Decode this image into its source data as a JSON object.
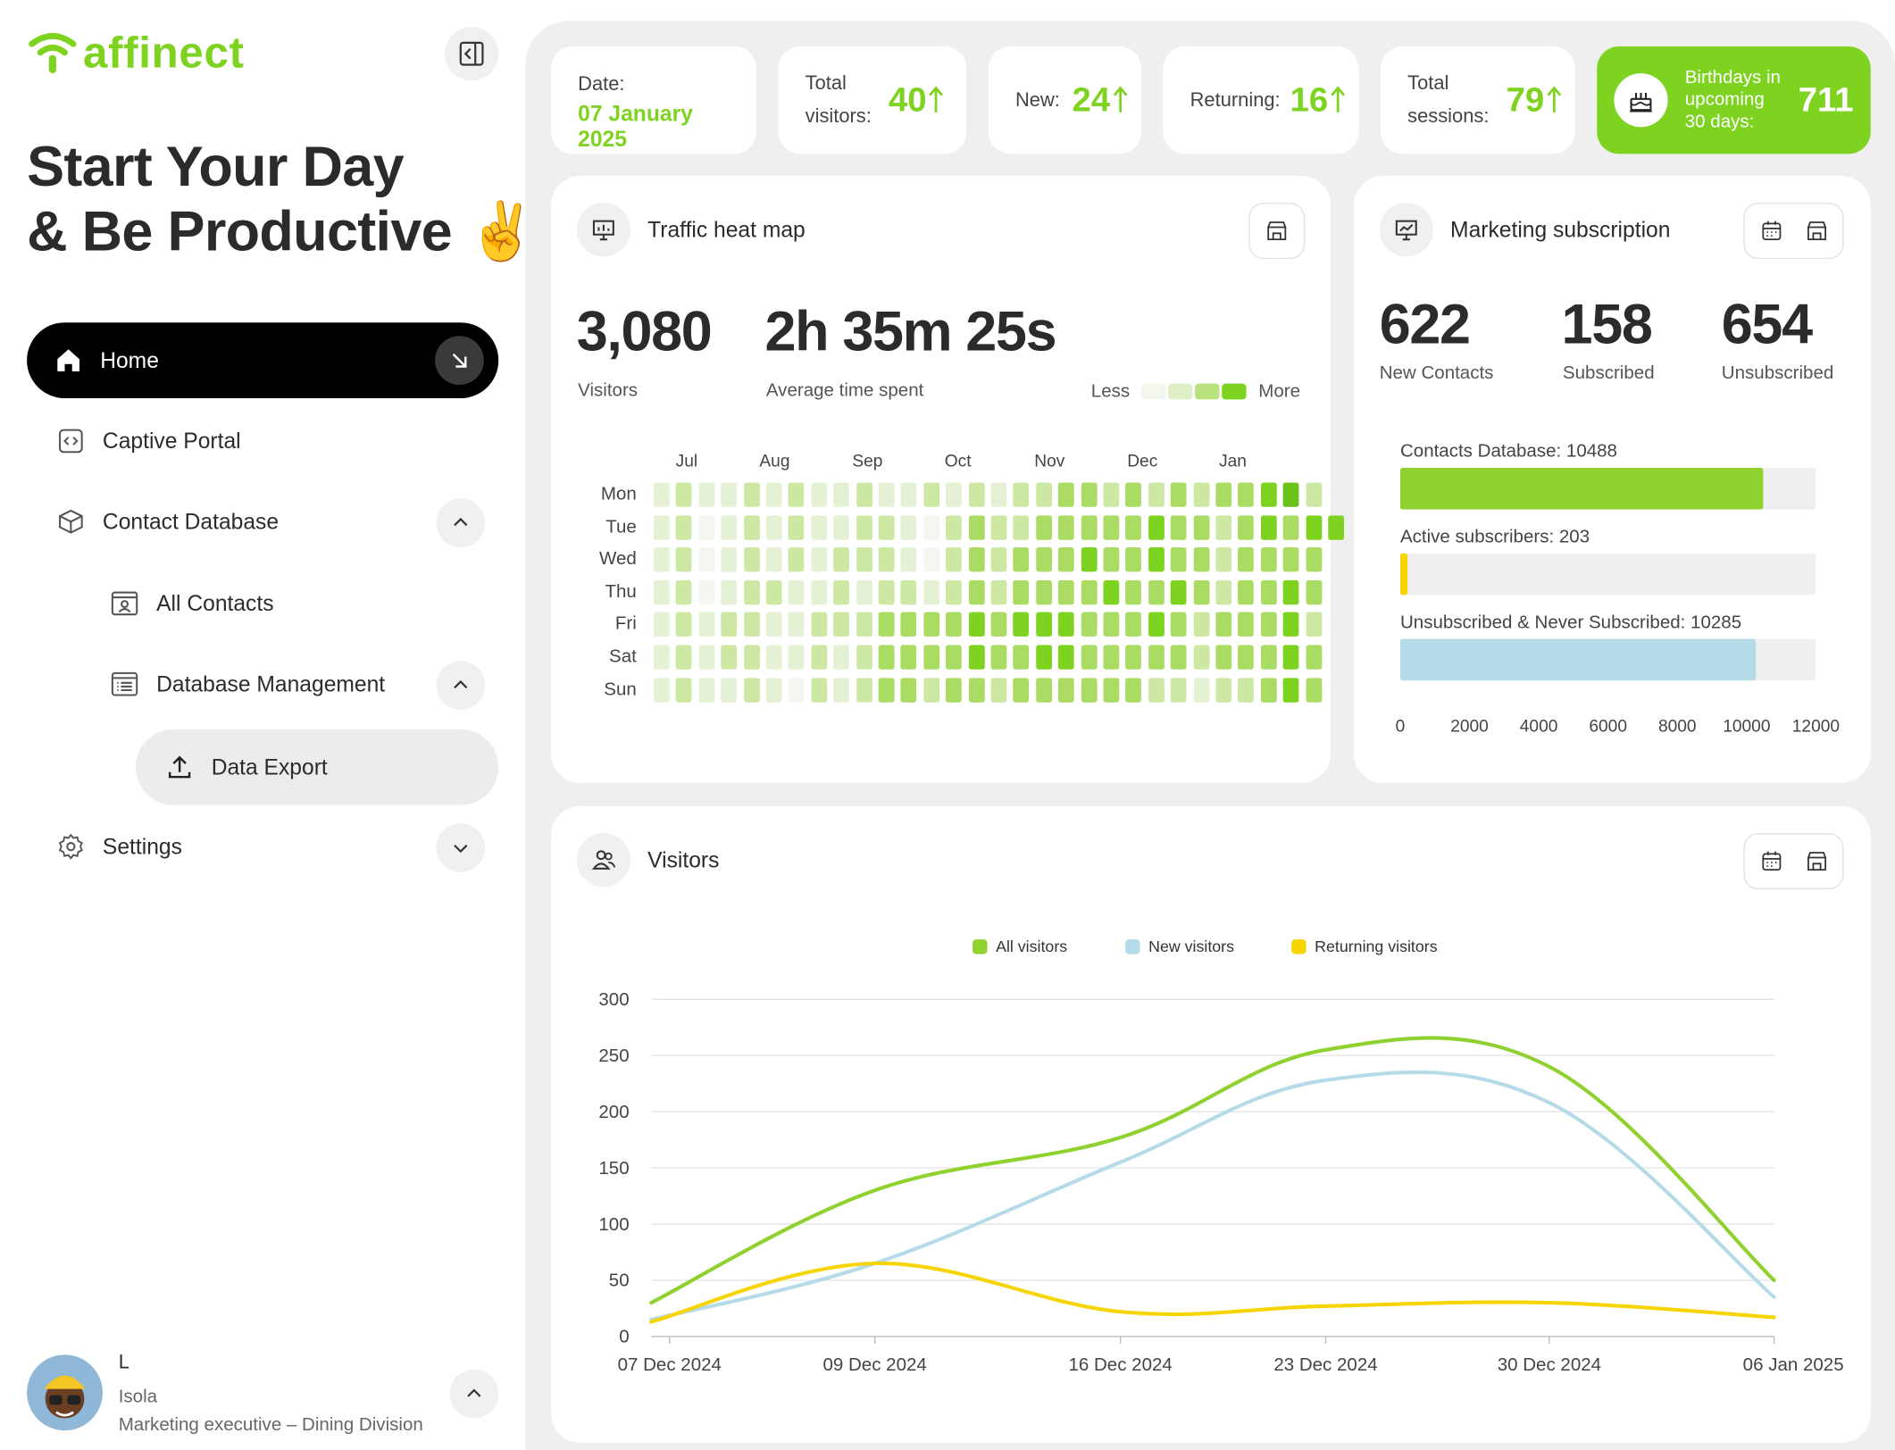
{
  "sidebar": {
    "brand": "affinect",
    "headline_line1": "Start Your Day",
    "headline_line2": "& Be Productive",
    "headline_emoji": "✌️",
    "nav": {
      "home": "Home",
      "captive_portal": "Captive Portal",
      "contact_database": "Contact Database",
      "all_contacts": "All Contacts",
      "database_management": "Database Management",
      "data_export": "Data Export",
      "settings": "Settings"
    },
    "user": {
      "name": "L",
      "location": "Isola",
      "role": "Marketing executive – Dining Division"
    }
  },
  "kpis": {
    "date_label": "Date:",
    "date_value": "07 January 2025",
    "total_visitors_label_1": "Total",
    "total_visitors_label_2": "visitors:",
    "total_visitors_value": "40",
    "new_label": "New:",
    "new_value": "24",
    "returning_label": "Returning:",
    "returning_value": "16",
    "total_sessions_label_1": "Total",
    "total_sessions_label_2": "sessions:",
    "total_sessions_value": "79",
    "birthdays_label_1": "Birthdays in",
    "birthdays_label_2": "upcoming",
    "birthdays_label_3": "30 days:",
    "birthdays_value": "711"
  },
  "heatmap_card": {
    "title": "Traffic heat map",
    "visitors_value": "3,080",
    "visitors_label": "Visitors",
    "time_value": "2h 35m 25s",
    "time_label": "Average time spent",
    "legend_less": "Less",
    "legend_more": "More",
    "months": [
      "Jul",
      "Aug",
      "Sep",
      "Oct",
      "Nov",
      "Dec",
      "Jan"
    ],
    "days": [
      "Mon",
      "Tue",
      "Wed",
      "Thu",
      "Fri",
      "Sat",
      "Sun"
    ],
    "levels": [
      [
        1,
        2,
        1,
        1,
        2,
        1,
        2,
        1,
        1,
        2,
        1,
        1,
        2,
        1,
        2,
        1,
        2,
        2,
        3,
        3,
        2,
        3,
        2,
        3,
        2,
        3,
        3,
        4,
        5,
        2
      ],
      [
        1,
        2,
        0,
        1,
        2,
        1,
        2,
        1,
        1,
        2,
        2,
        1,
        0,
        2,
        3,
        2,
        2,
        3,
        3,
        3,
        3,
        3,
        4,
        3,
        3,
        2,
        3,
        4,
        3,
        4,
        4
      ],
      [
        1,
        2,
        0,
        1,
        2,
        1,
        2,
        1,
        2,
        2,
        2,
        1,
        0,
        2,
        3,
        2,
        3,
        3,
        3,
        4,
        3,
        3,
        4,
        3,
        3,
        2,
        3,
        3,
        3,
        3
      ],
      [
        1,
        2,
        0,
        1,
        2,
        2,
        1,
        1,
        2,
        1,
        2,
        2,
        1,
        2,
        3,
        2,
        3,
        3,
        3,
        3,
        4,
        3,
        3,
        4,
        3,
        2,
        3,
        3,
        4,
        3
      ],
      [
        1,
        2,
        1,
        2,
        2,
        1,
        1,
        2,
        2,
        2,
        3,
        3,
        3,
        3,
        4,
        3,
        4,
        4,
        4,
        3,
        3,
        3,
        4,
        3,
        2,
        3,
        3,
        3,
        4,
        2
      ],
      [
        1,
        2,
        1,
        2,
        2,
        1,
        1,
        2,
        1,
        2,
        3,
        3,
        3,
        3,
        4,
        3,
        3,
        4,
        4,
        3,
        3,
        3,
        3,
        3,
        2,
        3,
        3,
        3,
        4,
        3
      ],
      [
        1,
        2,
        1,
        1,
        2,
        1,
        0,
        2,
        1,
        2,
        3,
        3,
        2,
        3,
        3,
        2,
        3,
        3,
        3,
        3,
        3,
        3,
        2,
        2,
        1,
        2,
        2,
        3,
        4,
        3
      ]
    ],
    "legend_colors": [
      "#f2f6ec",
      "#dff0c8",
      "#b9e27f",
      "#7ed321"
    ]
  },
  "marketing_card": {
    "title": "Marketing subscription",
    "new_contacts_value": "622",
    "new_contacts_label": "New Contacts",
    "subscribed_value": "158",
    "subscribed_label": "Subscribed",
    "unsubscribed_value": "654",
    "unsubscribed_label": "Unsubscribed",
    "bars": [
      {
        "label": "Contacts Database: 10488",
        "value": 10488,
        "color": "#8fd12e"
      },
      {
        "label": "Active subscribers: 203",
        "value": 203,
        "color": "#f5d400"
      },
      {
        "label": "Unsubscribed & Never Subscribed: 10285",
        "value": 10285,
        "color": "#b5dbe8"
      }
    ],
    "axis_max": 12000,
    "ticks": [
      "0",
      "2000",
      "4000",
      "6000",
      "8000",
      "10000",
      "12000"
    ]
  },
  "visitors_card": {
    "title": "Visitors",
    "legend": [
      {
        "label": "All visitors",
        "color": "#8fd12e"
      },
      {
        "label": "New visitors",
        "color": "#b5dbe8"
      },
      {
        "label": "Returning visitors",
        "color": "#f5d400"
      }
    ]
  },
  "chart_data": {
    "type": "line",
    "x": [
      "07 Dec 2024",
      "09 Dec 2024",
      "16 Dec 2024",
      "23 Dec 2024",
      "30 Dec 2024",
      "06 Jan 2025"
    ],
    "ylim": [
      0,
      300
    ],
    "yticks": [
      "0",
      "50",
      "100",
      "150",
      "200",
      "250",
      "300"
    ],
    "series": [
      {
        "name": "All visitors",
        "color": "#8fd12e",
        "values": [
          30,
          130,
          177,
          255,
          240,
          50
        ]
      },
      {
        "name": "New visitors",
        "color": "#b5dbe8",
        "values": [
          15,
          65,
          155,
          228,
          208,
          35
        ]
      },
      {
        "name": "Returning visitors",
        "color": "#f5d400",
        "values": [
          13,
          65,
          22,
          27,
          30,
          17
        ]
      }
    ]
  }
}
